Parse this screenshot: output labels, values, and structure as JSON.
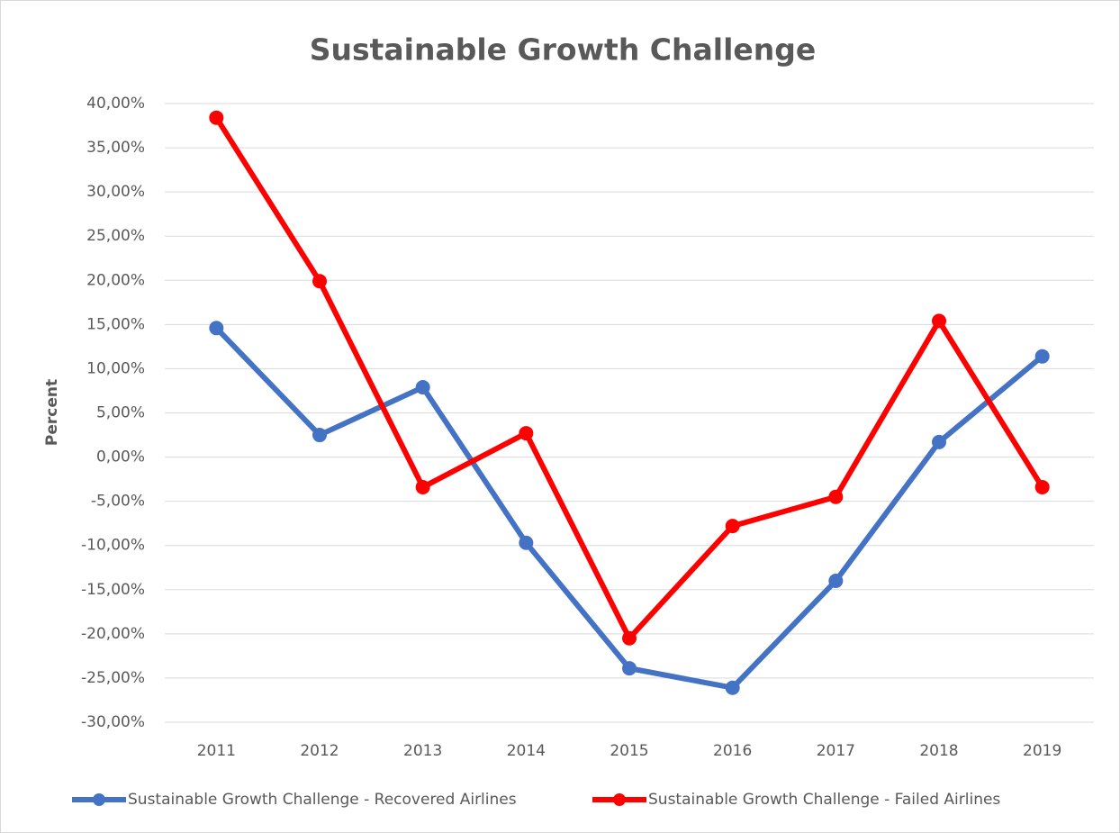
{
  "chart_data": {
    "type": "line",
    "title": "Sustainable Growth Challenge",
    "y_label": "Percent",
    "categories": [
      "2011",
      "2012",
      "2013",
      "2014",
      "2015",
      "2016",
      "2017",
      "2018",
      "2019"
    ],
    "series": [
      {
        "name": "Sustainable Growth Challenge - Recovered Airlines",
        "color": "#4472c4",
        "values": [
          14.6,
          2.5,
          7.9,
          -9.7,
          -23.9,
          -26.1,
          -14.0,
          1.7,
          11.4
        ]
      },
      {
        "name": "Sustainable Growth Challenge - Failed Airlines",
        "color": "#ff0000",
        "values": [
          38.4,
          19.9,
          -3.4,
          2.7,
          -20.5,
          -7.8,
          -4.5,
          15.4,
          -3.4
        ]
      }
    ],
    "ylim": [
      -30,
      40
    ],
    "yticks": [
      {
        "value": 40,
        "label": "40,00%"
      },
      {
        "value": 35,
        "label": "35,00%"
      },
      {
        "value": 30,
        "label": "30,00%"
      },
      {
        "value": 25,
        "label": "25,00%"
      },
      {
        "value": 20,
        "label": "20,00%"
      },
      {
        "value": 15,
        "label": "15,00%"
      },
      {
        "value": 10,
        "label": "10,00%"
      },
      {
        "value": 5,
        "label": "5,00%"
      },
      {
        "value": 0,
        "label": "0,00%"
      },
      {
        "value": -5,
        "label": "-5,00%"
      },
      {
        "value": -10,
        "label": "-10,00%"
      },
      {
        "value": -15,
        "label": "-15,00%"
      },
      {
        "value": -20,
        "label": "-20,00%"
      },
      {
        "value": -25,
        "label": "-25,00%"
      },
      {
        "value": -30,
        "label": "-30,00%"
      }
    ],
    "grid": true,
    "legend": "bottom"
  }
}
